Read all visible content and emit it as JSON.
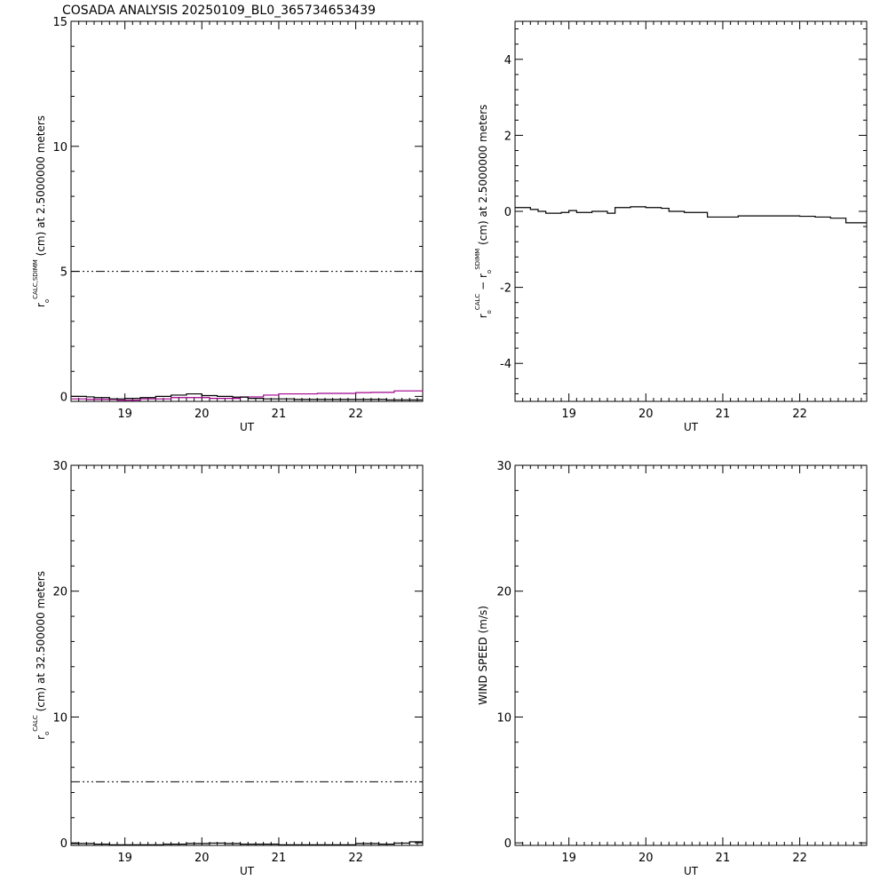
{
  "title": "COSADA ANALYSIS 20250109_BL0_365734653439",
  "colors": {
    "axes": "#000000",
    "series_black": "#000000",
    "series_magenta": "#a0008c"
  },
  "chart_data": [
    {
      "id": "p1",
      "type": "line",
      "xlabel": "UT",
      "ylabel": {
        "pre": "r",
        "sub": "o",
        "sup": "CALC,SDIMM",
        "post": "(cm)  at  2.5000000 meters"
      },
      "xlim": [
        18.3,
        22.87
      ],
      "ylim": [
        -0.2,
        15
      ],
      "xticks": [
        19,
        20,
        21,
        22
      ],
      "yticks": [
        0,
        5,
        10,
        15
      ],
      "ref_line": {
        "y": 5.0,
        "style": "dash-dot"
      },
      "series": [
        {
          "color": "magenta",
          "x": [
            18.3,
            18.5,
            18.9,
            19.2,
            19.6,
            20.1,
            20.5,
            20.8,
            21.0,
            21.5,
            22.0,
            22.2,
            22.5,
            22.87
          ],
          "y": [
            -0.1,
            -0.12,
            -0.15,
            -0.1,
            -0.05,
            -0.08,
            -0.02,
            0.05,
            0.1,
            0.12,
            0.15,
            0.16,
            0.22,
            0.18
          ]
        },
        {
          "color": "black",
          "x": [
            18.3,
            18.5,
            18.6,
            18.8,
            19.0,
            19.2,
            19.4,
            19.6,
            19.8,
            20.0,
            20.2,
            20.4,
            20.6,
            20.8,
            21.2,
            21.6,
            22.0,
            22.4,
            22.87
          ],
          "y": [
            0.0,
            -0.02,
            -0.05,
            -0.1,
            -0.08,
            -0.05,
            0.0,
            0.05,
            0.1,
            0.03,
            0.0,
            -0.03,
            -0.08,
            -0.1,
            -0.12,
            -0.12,
            -0.12,
            -0.14,
            -0.12
          ]
        }
      ]
    },
    {
      "id": "p2",
      "type": "line",
      "xlabel": "UT",
      "ylabel": {
        "pre": "r",
        "sub": "o",
        "sup": "CALC",
        "mid": " − r",
        "sub2": "o",
        "sup2": "SDIMM",
        "post": "(cm)  at  2.5000000 meters"
      },
      "xlim": [
        18.3,
        22.87
      ],
      "ylim": [
        -5,
        5
      ],
      "xticks": [
        19,
        20,
        21,
        22
      ],
      "yticks": [
        -4,
        -2,
        0,
        2,
        4
      ],
      "series": [
        {
          "color": "black",
          "x": [
            18.3,
            18.5,
            18.6,
            18.7,
            18.9,
            19.0,
            19.1,
            19.3,
            19.5,
            19.6,
            19.8,
            20.0,
            20.2,
            20.3,
            20.5,
            20.8,
            21.2,
            21.6,
            22.0,
            22.2,
            22.4,
            22.6,
            22.87
          ],
          "y": [
            0.1,
            0.05,
            0.0,
            -0.05,
            -0.03,
            0.02,
            -0.03,
            0.0,
            -0.05,
            0.1,
            0.12,
            0.1,
            0.08,
            0.0,
            -0.03,
            -0.15,
            -0.12,
            -0.12,
            -0.13,
            -0.15,
            -0.18,
            -0.3,
            -0.22
          ]
        }
      ]
    },
    {
      "id": "p3",
      "type": "line",
      "xlabel": "UT",
      "ylabel": {
        "pre": "r",
        "sub": "o",
        "sup": "CALC",
        "post": "(cm)  at  32.500000 meters"
      },
      "xlim": [
        18.3,
        22.87
      ],
      "ylim": [
        -0.2,
        30
      ],
      "xticks": [
        19,
        20,
        21,
        22
      ],
      "yticks": [
        0,
        10,
        20,
        30
      ],
      "ref_line": {
        "y": 4.85,
        "style": "dash-dot"
      },
      "series": [
        {
          "color": "black",
          "x": [
            18.3,
            18.6,
            18.8,
            19.0,
            19.2,
            19.5,
            19.8,
            20.1,
            20.3,
            20.5,
            21.0,
            21.5,
            22.0,
            22.3,
            22.5,
            22.7,
            22.87
          ],
          "y": [
            -0.05,
            -0.1,
            -0.15,
            -0.15,
            -0.15,
            -0.1,
            -0.05,
            -0.02,
            -0.05,
            -0.1,
            -0.15,
            -0.15,
            -0.05,
            -0.1,
            -0.02,
            0.08,
            0.15
          ]
        }
      ]
    },
    {
      "id": "p4",
      "type": "line",
      "xlabel": "UT",
      "ylabel": {
        "pre": "WIND SPEED (m/s)"
      },
      "xlim": [
        18.3,
        22.87
      ],
      "ylim": [
        -0.2,
        30
      ],
      "xticks": [
        19,
        20,
        21,
        22
      ],
      "yticks": [
        0,
        10,
        20,
        30
      ],
      "series": []
    }
  ]
}
